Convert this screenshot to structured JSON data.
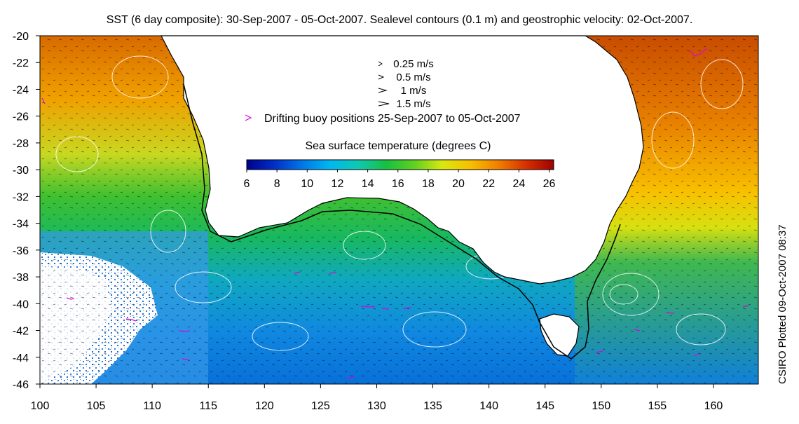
{
  "title": "SST (6 day composite): 30-Sep-2007 - 05-Oct-2007. Sealevel contours (0.1 m) and geostrophic velocity: 02-Oct-2007.",
  "credit": "CSIRO Plotted 09-Oct-2007 08:37",
  "map": {
    "lon_range": [
      100,
      164
    ],
    "lat_range": [
      -46,
      -20
    ],
    "x_ticks": [
      "100",
      "105",
      "110",
      "115",
      "120",
      "125",
      "130",
      "135",
      "140",
      "145",
      "150",
      "155",
      "160"
    ],
    "y_ticks": [
      "-20",
      "-22",
      "-24",
      "-26",
      "-28",
      "-30",
      "-32",
      "-34",
      "-36",
      "-38",
      "-40",
      "-42",
      "-44",
      "-46"
    ],
    "land_color": "#ffffff",
    "coast_color": "#000000",
    "contour_color": "#ffffff",
    "buoy_color": "#e000e0"
  },
  "velocity_legend": {
    "items": [
      {
        "label": "0.25 m/s",
        "speed": 0.25
      },
      {
        "label": "0.5 m/s",
        "speed": 0.5
      },
      {
        "label": "1 m/s",
        "speed": 1
      },
      {
        "label": "1.5 m/s",
        "speed": 1.5
      }
    ],
    "buoy_label": "Drifting buoy positions 25-Sep-2007 to 05-Oct-2007"
  },
  "colorbar": {
    "title": "Sea surface temperature (degrees C)",
    "ticks": [
      "6",
      "8",
      "10",
      "12",
      "14",
      "16",
      "18",
      "20",
      "22",
      "24",
      "26"
    ],
    "min": 6,
    "max": 26.3,
    "colors": [
      "#00008c",
      "#0030c8",
      "#0078e8",
      "#00b8f0",
      "#10c8b0",
      "#18c040",
      "#60d020",
      "#d8e810",
      "#f8c000",
      "#f08000",
      "#d83000",
      "#a00000"
    ]
  }
}
